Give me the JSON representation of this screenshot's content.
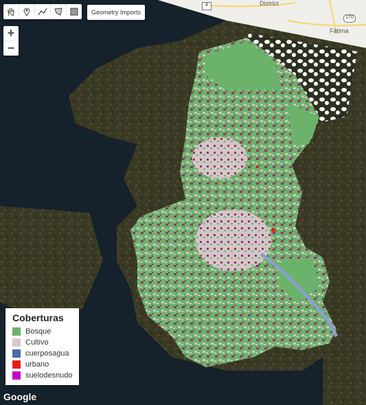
{
  "toolbar": {
    "tools": [
      "hand-tool-icon",
      "point-marker-icon",
      "line-tool-icon",
      "polygon-tool-icon",
      "rectangle-tool-icon"
    ],
    "geometry_imports_label": "Geometry Imports"
  },
  "zoom": {
    "in_label": "+",
    "out_label": "−"
  },
  "basemap": {
    "place_labels": [
      "District",
      "Fátima"
    ],
    "road_badges": [
      "4",
      "170"
    ]
  },
  "legend": {
    "title": "Coberturas",
    "items": [
      {
        "label": "Bosque",
        "color": "#6bb36b"
      },
      {
        "label": "Cultivo",
        "color": "#d8c8c8"
      },
      {
        "label": "cuerposagua",
        "color": "#4a6aa8"
      },
      {
        "label": "urbano",
        "color": "#e51a1a"
      },
      {
        "label": "suelodesnudo",
        "color": "#c800c8"
      }
    ]
  },
  "colors": {
    "bosque": "#6bb36b",
    "cultivo": "#d3c6c8",
    "agua": "#8aa0c8",
    "suelo": "#9c2f6a",
    "urbano": "#e51a1a"
  },
  "attribution": "Google"
}
